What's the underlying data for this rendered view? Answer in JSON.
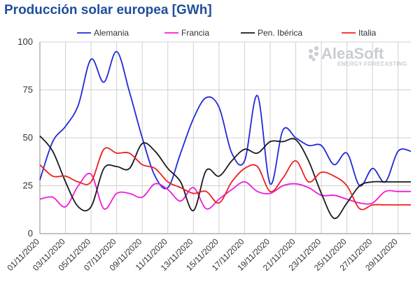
{
  "chart_data": {
    "type": "line",
    "title": "Producción solar europea [GWh]",
    "xlabel": "",
    "ylabel": "",
    "ylim": [
      0,
      100
    ],
    "yticks": [
      "0",
      "25",
      "50",
      "75",
      "100"
    ],
    "grid": "horizontal",
    "legend_position": "top",
    "x": [
      "01/11/2020",
      "02/11/2020",
      "03/11/2020",
      "04/11/2020",
      "05/11/2020",
      "06/11/2020",
      "07/11/2020",
      "08/11/2020",
      "09/11/2020",
      "10/11/2020",
      "11/11/2020",
      "12/11/2020",
      "13/11/2020",
      "14/11/2020",
      "15/11/2020",
      "16/11/2020",
      "17/11/2020",
      "18/11/2020",
      "19/11/2020",
      "20/11/2020",
      "21/11/2020",
      "22/11/2020",
      "23/11/2020",
      "24/11/2020",
      "25/11/2020",
      "26/11/2020",
      "27/11/2020",
      "28/11/2020",
      "29/11/2020",
      "30/11/2020"
    ],
    "xtick_labels": [
      "01/11/2020",
      "03/11/2020",
      "05/11/2020",
      "07/11/2020",
      "09/11/2020",
      "11/11/2020",
      "13/11/2020",
      "15/11/2020",
      "17/11/2020",
      "19/11/2020",
      "21/11/2020",
      "23/11/2020",
      "25/11/2020",
      "27/11/2020",
      "29/11/2020"
    ],
    "series": [
      {
        "name": "Alemania",
        "color": "#1f2bd6",
        "values": [
          28,
          48,
          56,
          67,
          91,
          79,
          95,
          74,
          50,
          30,
          24,
          42,
          60,
          71,
          66,
          42,
          38,
          72,
          26,
          54,
          50,
          46,
          46,
          36,
          42,
          25,
          34,
          27,
          43,
          43
        ]
      },
      {
        "name": "Francia",
        "color": "#ee1bd9",
        "values": [
          18,
          19,
          14,
          25,
          31,
          13,
          21,
          21,
          19,
          26,
          23,
          17,
          24,
          13,
          18,
          23,
          27,
          22,
          21,
          25,
          26,
          24,
          20,
          20,
          18,
          16,
          16,
          22,
          22,
          22
        ]
      },
      {
        "name": "Pen. Ibérica",
        "color": "#1a1a1a",
        "values": [
          51,
          43,
          27,
          14,
          14,
          34,
          35,
          34,
          47,
          43,
          34,
          27,
          12,
          33,
          30,
          38,
          44,
          42,
          48,
          48,
          49,
          38,
          21,
          8,
          16,
          25,
          27,
          27,
          27,
          27
        ]
      },
      {
        "name": "Italia",
        "color": "#ee2020",
        "values": [
          36,
          30,
          30,
          27,
          27,
          44,
          42,
          42,
          36,
          34,
          27,
          24,
          21,
          22,
          16,
          27,
          34,
          35,
          22,
          29,
          38,
          27,
          32,
          30,
          25,
          13,
          15,
          15,
          15,
          15
        ]
      }
    ]
  },
  "logo": {
    "main": "AleaSoft",
    "sub": "ENERGY FORECASTING"
  }
}
